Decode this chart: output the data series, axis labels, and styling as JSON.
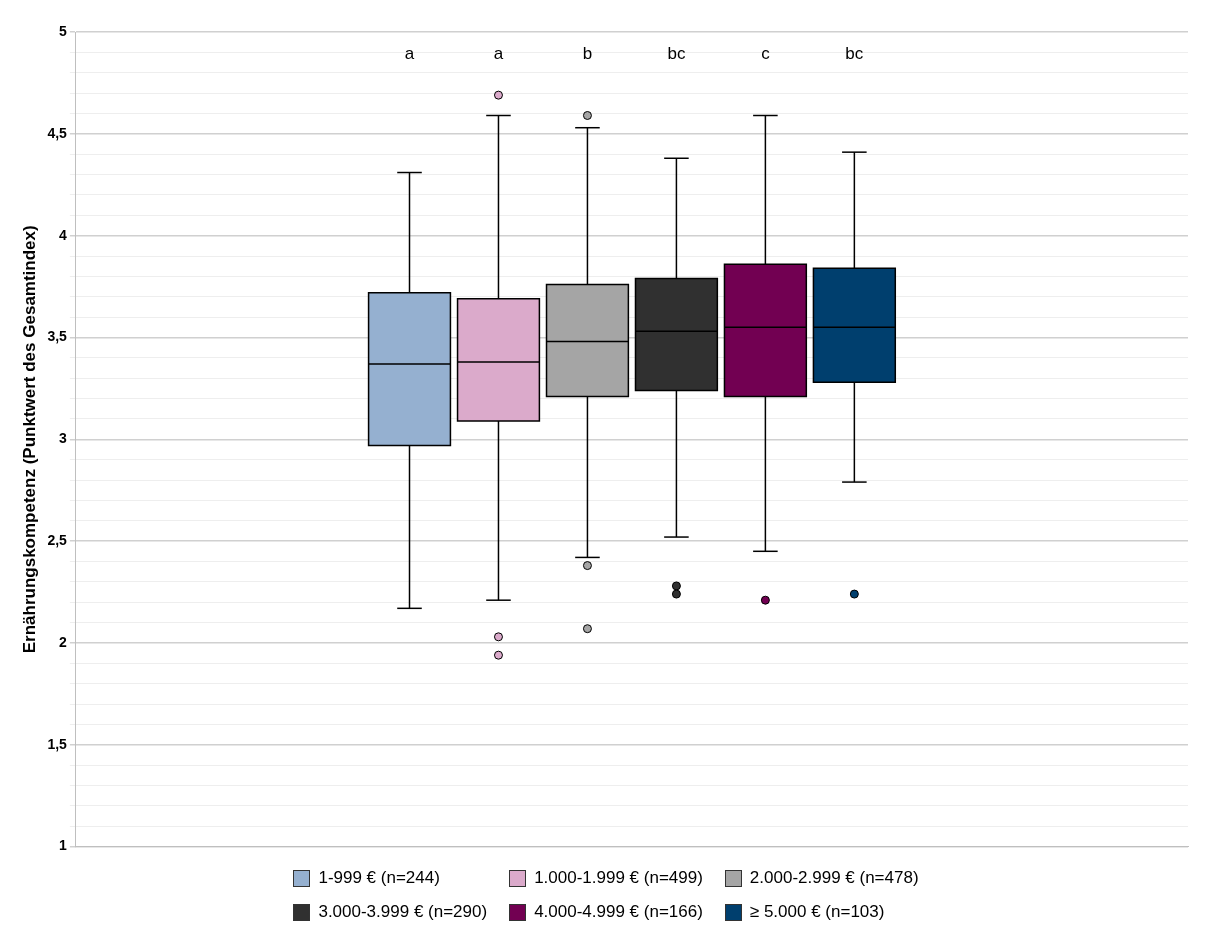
{
  "chart_data": {
    "type": "box",
    "categories": [
      null
    ],
    "ylabel": "Ernährungskompetenz (Punktwert des Gesamtindex)",
    "ylim": [
      1,
      5
    ],
    "yticks": [
      1,
      {
        "value": 1.1,
        "label": null
      },
      {
        "value": 1.2,
        "label": null
      },
      {
        "value": 1.3,
        "label": null
      },
      {
        "value": 1.4,
        "label": null
      },
      {
        "value": 1.5,
        "label": "1,5"
      },
      {
        "value": 1.6,
        "label": null
      },
      {
        "value": 1.7,
        "label": null
      },
      {
        "value": 1.8,
        "label": null
      },
      {
        "value": 1.9,
        "label": null
      },
      2,
      {
        "value": 2.1,
        "label": null
      },
      {
        "value": 2.2,
        "label": null
      },
      {
        "value": 2.3,
        "label": null
      },
      {
        "value": 2.4,
        "label": null
      },
      {
        "value": 2.5,
        "label": "2,5"
      },
      {
        "value": 2.6,
        "label": null
      },
      {
        "value": 2.7,
        "label": null
      },
      {
        "value": 2.8,
        "label": null
      },
      {
        "value": 2.9,
        "label": null
      },
      3,
      {
        "value": 3.1,
        "label": null
      },
      {
        "value": 3.2,
        "label": null
      },
      {
        "value": 3.3,
        "label": null
      },
      {
        "value": 3.4,
        "label": null
      },
      {
        "value": 3.5,
        "label": "3,5"
      },
      {
        "value": 3.6,
        "label": null
      },
      {
        "value": 3.7,
        "label": null
      },
      {
        "value": 3.8,
        "label": null
      },
      {
        "value": 3.9,
        "label": null
      },
      4,
      {
        "value": 4.1,
        "label": null
      },
      {
        "value": 4.2,
        "label": null
      },
      {
        "value": 4.3,
        "label": null
      },
      {
        "value": 4.4,
        "label": null
      },
      {
        "value": 4.5,
        "label": "4,5"
      },
      {
        "value": 4.6,
        "label": null
      },
      {
        "value": 4.7,
        "label": null
      },
      {
        "value": 4.8,
        "label": null
      },
      {
        "value": 4.9,
        "label": null
      },
      5
    ],
    "grid": "y",
    "legend": "bottom",
    "tick_labels": "y",
    "annotations": [
      "a",
      "a",
      "b",
      "bc",
      "c",
      "bc"
    ],
    "series": [
      {
        "name": "1-999 € (n=244)",
        "color": "#95b0d0",
        "boxes": [
          {
            "low": 2.17,
            "q1": 2.97,
            "median": 3.37,
            "q3": 3.72,
            "high": 4.31
          }
        ]
      },
      {
        "name": "1.000-1.999 € (n=499)",
        "color": "#dbaacb",
        "boxes": [
          {
            "low": 2.21,
            "q1": 3.09,
            "median": 3.38,
            "q3": 3.69,
            "high": 4.59,
            "outliers": [
              4.69,
              2.03,
              1.94
            ]
          }
        ]
      },
      {
        "name": "2.000-2.999 € (n=478)",
        "color": "#a5a5a5",
        "boxes": [
          {
            "low": 2.42,
            "q1": 3.21,
            "median": 3.48,
            "q3": 3.76,
            "high": 4.53,
            "outliers": [
              4.59,
              2.38,
              2.07
            ]
          }
        ]
      },
      {
        "name": "3.000-3.999 € (n=290)",
        "color": "#303030",
        "boxes": [
          {
            "low": 2.52,
            "q1": 3.24,
            "median": 3.53,
            "q3": 3.79,
            "high": 4.38,
            "outliers": [
              2.28,
              2.24
            ]
          }
        ]
      },
      {
        "name": "4.000-4.999 € (n=166)",
        "color": "#720052",
        "boxes": [
          {
            "low": 2.45,
            "q1": 3.21,
            "median": 3.55,
            "q3": 3.86,
            "high": 4.59,
            "outliers": [
              2.21
            ]
          }
        ]
      },
      {
        "name": "≥ 5.000 € (n=103)",
        "color": "#003f6e",
        "boxes": [
          {
            "low": 2.79,
            "q1": 3.28,
            "median": 3.55,
            "q3": 3.84,
            "high": 4.41,
            "outliers": [
              2.24
            ]
          }
        ]
      }
    ]
  }
}
